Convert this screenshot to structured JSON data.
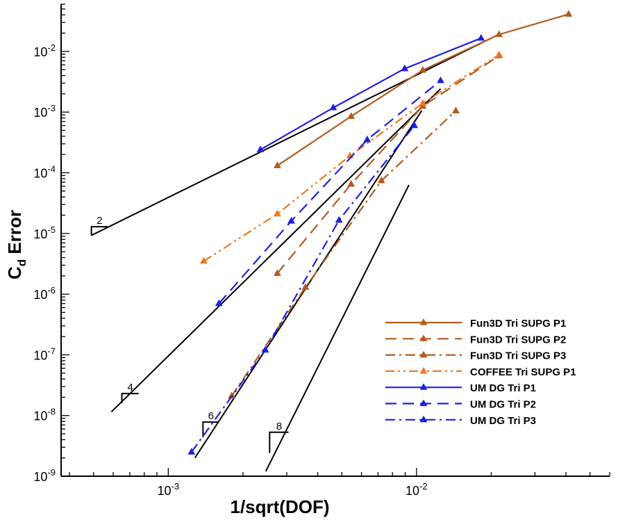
{
  "chart_data": {
    "type": "line",
    "xlabel": "1/sqrt(DOF)",
    "ylabel_main": "C",
    "ylabel_sub": "d",
    "ylabel_rest": " Error",
    "x_scale": "log",
    "y_scale": "log",
    "xlim": [
      0.00037,
      0.06
    ],
    "ylim": [
      1e-09,
      0.06
    ],
    "x_ticks": [
      {
        "value": 0.001,
        "base": "10",
        "exp": "-3"
      },
      {
        "value": 0.01,
        "base": "10",
        "exp": "-2"
      }
    ],
    "y_ticks": [
      {
        "value": 1e-09,
        "base": "10",
        "exp": "-9"
      },
      {
        "value": 1e-08,
        "base": "10",
        "exp": "-8"
      },
      {
        "value": 1e-07,
        "base": "10",
        "exp": "-7"
      },
      {
        "value": 1e-06,
        "base": "10",
        "exp": "-6"
      },
      {
        "value": 1e-05,
        "base": "10",
        "exp": "-5"
      },
      {
        "value": 0.0001,
        "base": "10",
        "exp": "-4"
      },
      {
        "value": 0.001,
        "base": "10",
        "exp": "-3"
      },
      {
        "value": 0.01,
        "base": "10",
        "exp": "-2"
      }
    ],
    "series": [
      {
        "name": "Fun3D Tri SUPG P1",
        "color": "#b35a1f",
        "dash": "solid",
        "x": [
          0.00275,
          0.00545,
          0.0106,
          0.0215,
          0.041
        ],
        "y": [
          0.000131,
          0.00085,
          0.0049,
          0.019,
          0.041
        ]
      },
      {
        "name": "Fun3D Tri SUPG P2",
        "color": "#b35a1f",
        "dash": "dash",
        "x": [
          0.00275,
          0.00545,
          0.0106,
          0.0215
        ],
        "y": [
          2.2e-06,
          6.5e-05,
          0.00125,
          0.0085
        ]
      },
      {
        "name": "Fun3D Tri SUPG P3",
        "color": "#b35a1f",
        "dash": "dashdot",
        "x": [
          0.0018,
          0.00357,
          0.00722,
          0.0144
        ],
        "y": [
          2.1e-08,
          1.3e-06,
          7.4e-05,
          0.00105
        ]
      },
      {
        "name": "COFFEE Tri SUPG P1",
        "color": "#f07820",
        "dash": "dashdotdot",
        "x": [
          0.00139,
          0.00275,
          0.00539,
          0.0106,
          0.0215
        ],
        "y": [
          3.5e-06,
          2.1e-05,
          0.00019,
          0.0014,
          0.0088
        ]
      },
      {
        "name": "UM DG Tri P1",
        "color": "#1e1ee8",
        "dash": "solid",
        "x": [
          0.00235,
          0.00462,
          0.00896,
          0.0182
        ],
        "y": [
          0.00024,
          0.00118,
          0.0052,
          0.0165
        ]
      },
      {
        "name": "UM DG Tri P2",
        "color": "#1e1ee8",
        "dash": "dash",
        "x": [
          0.0016,
          0.00313,
          0.00633,
          0.0125
        ],
        "y": [
          7e-07,
          1.6e-05,
          0.00035,
          0.0033
        ]
      },
      {
        "name": "UM DG Tri P3",
        "color": "#1e1ee8",
        "dash": "dashdot",
        "x": [
          0.00124,
          0.00246,
          0.00487,
          0.0098
        ],
        "y": [
          2.5e-09,
          1.2e-07,
          1.65e-05,
          0.0006
        ]
      }
    ],
    "reference_lines": [
      {
        "label": "2",
        "x": [
          0.00049,
          0.0215
        ],
        "y": [
          9.3e-06,
          0.0191
        ]
      },
      {
        "label": "4",
        "x": [
          0.00059,
          0.0125
        ],
        "y": [
          1.15e-08,
          0.00242
        ]
      },
      {
        "label": "6",
        "x": [
          0.00128,
          0.0105
        ],
        "y": [
          2e-09,
          0.00106
        ]
      },
      {
        "label": "8",
        "x": [
          0.00247,
          0.00932
        ],
        "y": [
          1.2e-09,
          6.3e-05
        ]
      }
    ],
    "slope_triangles": [
      {
        "label": "2",
        "x": [
          0.00049,
          0.00057
        ],
        "y": [
          9.3e-06,
          1.29e-05
        ]
      },
      {
        "label": "4",
        "x": [
          0.00065,
          0.00076
        ],
        "y": [
          1.6e-08,
          2.3e-08
        ]
      },
      {
        "label": "6",
        "x": [
          0.00138,
          0.0016
        ],
        "y": [
          4.4e-09,
          7.8e-09
        ]
      },
      {
        "label": "8",
        "x": [
          0.00256,
          0.00305
        ],
        "y": [
          2.4e-09,
          5.3e-09
        ]
      }
    ],
    "legend_position": "lower-right",
    "grid": false
  }
}
